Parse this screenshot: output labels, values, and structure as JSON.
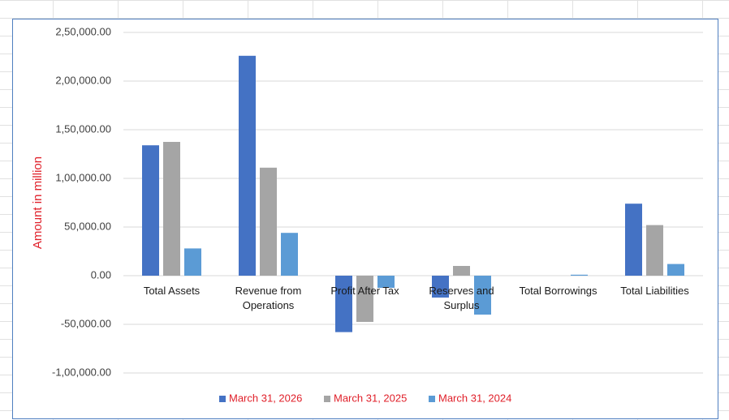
{
  "chart_data": {
    "type": "bar",
    "y_label": "Amount in million",
    "categories": [
      "Total Assets",
      "Revenue from Operations",
      "Profit After Tax",
      "Reserves and Surplus",
      "Total Borrowings",
      "Total Liabilities"
    ],
    "series": [
      {
        "name": "March 31, 2026",
        "color": "#4472c4",
        "values": [
          134000,
          226000,
          -58000,
          -22500,
          0,
          74000
        ]
      },
      {
        "name": "March 31, 2025",
        "color": "#a5a5a5",
        "values": [
          137500,
          111000,
          -47500,
          10000,
          0,
          52000
        ]
      },
      {
        "name": "March 31, 2024",
        "color": "#5b9bd5",
        "values": [
          28000,
          44000,
          -12500,
          -40000,
          1000,
          12000
        ]
      }
    ],
    "ylim": [
      -100000,
      250000
    ],
    "yticks": [
      {
        "value": -100000,
        "label": "-1,00,000.00"
      },
      {
        "value": -50000,
        "label": "-50,000.00"
      },
      {
        "value": 0,
        "label": "0.00"
      },
      {
        "value": 50000,
        "label": "50,000.00"
      },
      {
        "value": 100000,
        "label": "1,00,000.00"
      },
      {
        "value": 150000,
        "label": "1,50,000.00"
      },
      {
        "value": 200000,
        "label": "2,00,000.00"
      },
      {
        "value": 250000,
        "label": "2,50,000.00"
      }
    ],
    "grid": true
  }
}
